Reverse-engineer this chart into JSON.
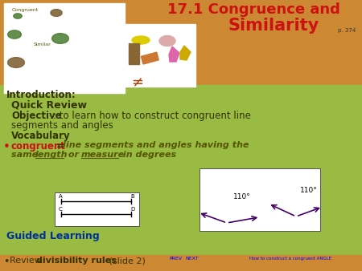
{
  "bg_color": "#CC8833",
  "green_bg": "#99BB44",
  "title_line1": "17.1 Congruence and",
  "title_line2": "Similarity",
  "title_page": "p. 374",
  "title_color": "#CC1111",
  "intro_label": "Introduction:",
  "quick_review": "Quick Review",
  "text_dark": "#333300",
  "red_color": "#CC1111",
  "bullet_color": "#CC1111",
  "italic_color": "#555500",
  "angle_color": "#440066",
  "guided_color": "#003399"
}
